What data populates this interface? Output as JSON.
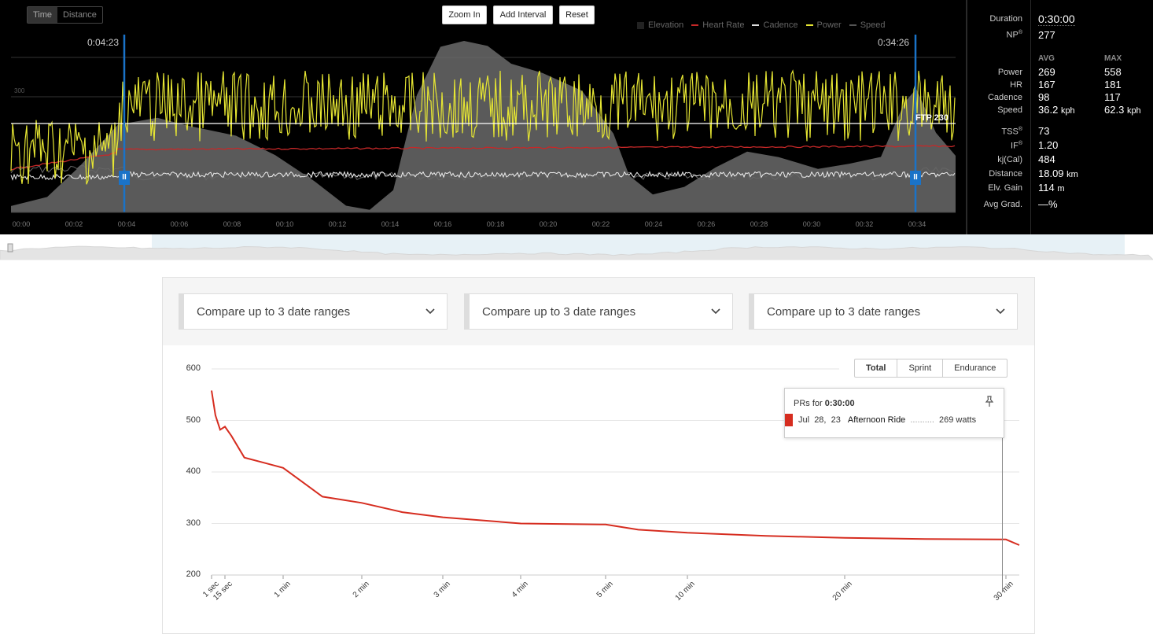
{
  "top_chart": {
    "view_toggle": {
      "time_label": "Time",
      "distance_label": "Distance",
      "active": "Time"
    },
    "buttons": {
      "zoom_in": "Zoom In",
      "add_interval": "Add Interval",
      "reset": "Reset"
    },
    "legend": [
      {
        "label": "Elevation",
        "color": "#222222"
      },
      {
        "label": "Heart Rate",
        "color": "#c62828"
      },
      {
        "label": "Cadence",
        "color": "#dddddd"
      },
      {
        "label": "Power",
        "color": "#e6e633"
      },
      {
        "label": "Speed",
        "color": "#555555"
      }
    ],
    "interval_start_label": "0:04:23",
    "interval_end_label": "0:34:26",
    "ftp_label": "FTP 230",
    "y_axis_label_300": "300",
    "x_ticks": [
      "00:00",
      "00:02",
      "00:04",
      "00:06",
      "00:08",
      "00:10",
      "00:12",
      "00:14",
      "00:16",
      "00:18",
      "00:20",
      "00:22",
      "00:24",
      "00:26",
      "00:28",
      "00:30",
      "00:32",
      "00:34"
    ],
    "handle_icon": "pause-icon"
  },
  "stats": {
    "duration_label": "Duration",
    "duration_value": "0:30:00",
    "np_label": "NP",
    "np_value": "277",
    "avg_header": "AVG",
    "max_header": "MAX",
    "rows": [
      {
        "label": "Power",
        "avg": "269",
        "max": "558",
        "unit": ""
      },
      {
        "label": "HR",
        "avg": "167",
        "max": "181",
        "unit": ""
      },
      {
        "label": "Cadence",
        "avg": "98",
        "max": "117",
        "unit": ""
      },
      {
        "label": "Speed",
        "avg": "36.2",
        "max": "62.3",
        "unit": "kph"
      }
    ],
    "tss_label": "TSS",
    "tss_value": "73",
    "if_label": "IF",
    "if_value": "1.20",
    "kj_label": "kj(Cal)",
    "kj_value": "484",
    "distance_label": "Distance",
    "distance_value": "18.09",
    "distance_unit": "km",
    "elv_label": "Elv. Gain",
    "elv_value": "114",
    "elv_unit": "m",
    "grad_label": "Avg Grad.",
    "grad_value": "—%"
  },
  "compare": {
    "dropdowns": [
      "Compare up to 3 date ranges",
      "Compare up to 3 date ranges",
      "Compare up to 3 date ranges"
    ],
    "chevron_icon": "chevron-down-icon"
  },
  "power_curve": {
    "tabs": [
      "Total",
      "Sprint",
      "Endurance"
    ],
    "active_tab": "Total",
    "tooltip": {
      "prefix": "PRs for ",
      "duration": "0:30:00",
      "date_month": "Jul",
      "date_day": "28,",
      "date_year": "23",
      "ride_name": "Afternoon Ride",
      "dots": "..........",
      "value": "269 watts",
      "pin_icon": "pin-icon"
    }
  },
  "chart_data": {
    "type": "line",
    "title": "",
    "xlabel": "",
    "ylabel": "",
    "ylim": [
      200,
      600
    ],
    "y_ticks": [
      "600",
      "500",
      "400",
      "300",
      "200"
    ],
    "x_scale": "log",
    "x_tick_labels": [
      "1 sec",
      "15 sec",
      "1 min",
      "2 min",
      "3 min",
      "4 min",
      "5 min",
      "10 min",
      "20 min",
      "30 min"
    ],
    "series": [
      {
        "color": "#d62d20",
        "x_labels": [
          "1 sec",
          "5 sec",
          "10 sec",
          "15 sec",
          "20 sec",
          "30 sec",
          "45 sec",
          "1 min",
          "1.5 min",
          "2 min",
          "2.5 min",
          "3 min",
          "4 min",
          "5 min",
          "7 min",
          "10 min",
          "15 min",
          "20 min",
          "25 min",
          "30 min"
        ],
        "values": [
          558,
          510,
          482,
          488,
          470,
          428,
          418,
          408,
          352,
          340,
          322,
          312,
          300,
          298,
          288,
          282,
          276,
          272,
          270,
          269
        ]
      }
    ]
  }
}
